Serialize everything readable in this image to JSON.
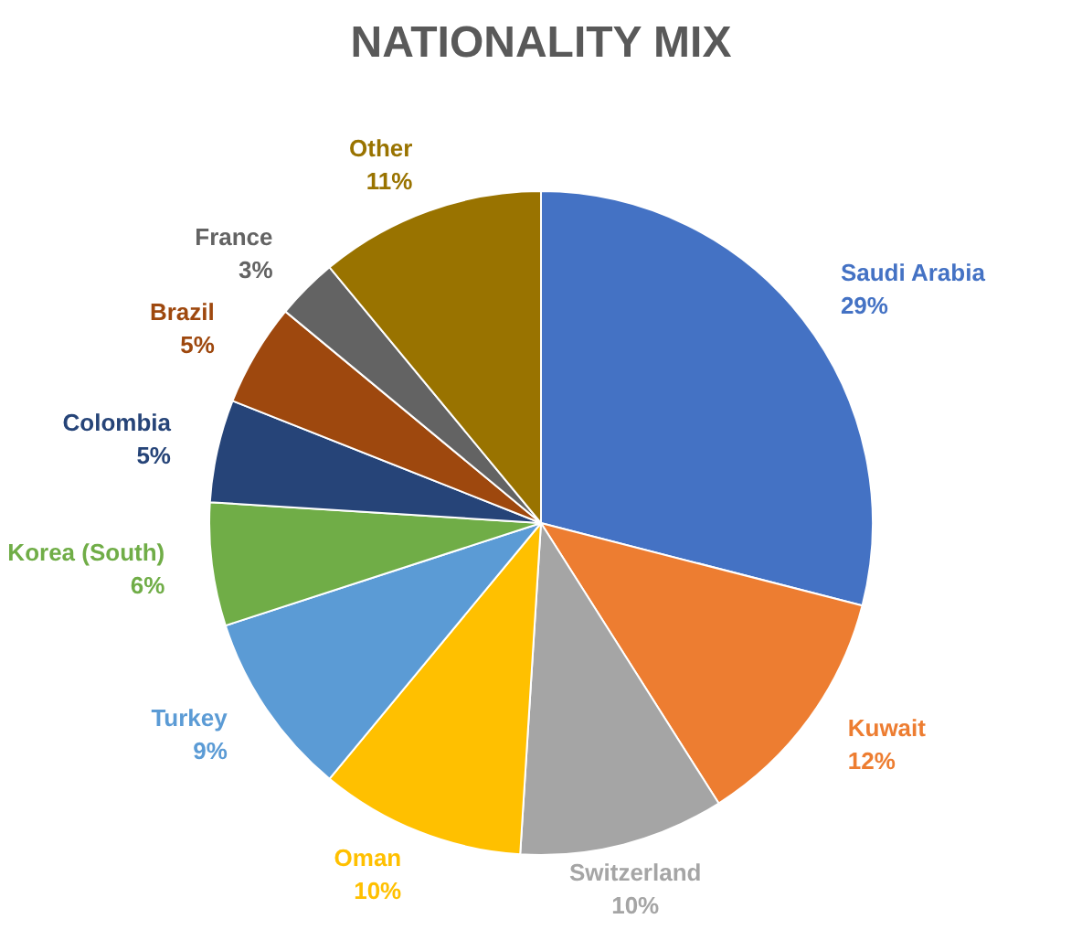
{
  "chart_data": {
    "type": "pie",
    "title": "NATIONALITY MIX",
    "categories": [
      "Saudi Arabia",
      "Kuwait",
      "Switzerland",
      "Oman",
      "Turkey",
      "Korea (South)",
      "Colombia",
      "Brazil",
      "France",
      "Other"
    ],
    "values": [
      29,
      12,
      10,
      10,
      9,
      6,
      5,
      5,
      3,
      11
    ],
    "value_labels": [
      "29%",
      "12%",
      "10%",
      "10%",
      "9%",
      "6%",
      "5%",
      "5%",
      "3%",
      "11%"
    ],
    "colors": [
      "#4472c4",
      "#ed7d31",
      "#a5a5a5",
      "#ffc000",
      "#5b9bd5",
      "#70ad47",
      "#264478",
      "#9e480e",
      "#636363",
      "#997300"
    ],
    "legend": false
  }
}
